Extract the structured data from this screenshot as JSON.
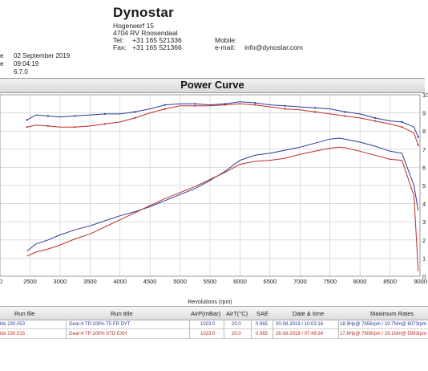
{
  "header": {
    "company": "Dynostar",
    "address_line1": "Hogerwerf 15",
    "address_line2": "4704 RV Roosendaal",
    "tel_label": "Tel:",
    "tel": "+31 165 521336",
    "fax_label": "Fax:",
    "fax": "+31 165 521366",
    "mobile_label": "Mobile:",
    "email_label": "e-mail:",
    "email": "info@dynostar.com"
  },
  "meta": {
    "rows": [
      {
        "label": "e",
        "value": "02 September 2019"
      },
      {
        "label": "e",
        "value": "09:04:19"
      },
      {
        "label": "",
        "value": "6.7.0"
      }
    ]
  },
  "chart_data": {
    "type": "line",
    "title": "Power Curve",
    "xlabel": "Revolutions (rpm)",
    "xlim": [
      2000,
      9000
    ],
    "x_ticks": [
      2500,
      3000,
      3500,
      4000,
      4500,
      5000,
      5500,
      6000,
      6500,
      7000,
      7500,
      8000,
      8500,
      9000
    ],
    "left_x_tick_partial": "2000",
    "right_axis_ticks": [
      "10",
      "9",
      "8",
      "7",
      "6",
      "5",
      "4",
      "3",
      "2",
      "1",
      "0"
    ],
    "grid": true,
    "series": [
      {
        "group": "power",
        "color": "#2b3a9c",
        "x": [
          2450,
          2600,
          2800,
          3000,
          3250,
          3500,
          3750,
          4000,
          4250,
          4500,
          4750,
          5000,
          5250,
          5500,
          5750,
          6000,
          6250,
          6500,
          6750,
          7000,
          7250,
          7500,
          7650,
          7750,
          8000,
          8250,
          8500,
          8700,
          8900,
          8970
        ],
        "y": [
          2.5,
          3.2,
          3.6,
          4.1,
          4.6,
          5.0,
          5.5,
          6.0,
          6.4,
          6.9,
          7.5,
          8.1,
          8.7,
          9.5,
          10.4,
          11.5,
          12.0,
          12.2,
          12.5,
          12.8,
          13.2,
          13.6,
          13.7,
          13.6,
          13.3,
          12.9,
          12.4,
          12.2,
          9.0,
          6.5
        ]
      },
      {
        "group": "power",
        "color": "#c12a2a",
        "x": [
          2450,
          2600,
          2800,
          3000,
          3250,
          3500,
          3750,
          4000,
          4250,
          4500,
          4750,
          5000,
          5250,
          5500,
          5750,
          6000,
          6250,
          6500,
          6750,
          7000,
          7250,
          7500,
          7650,
          7750,
          8000,
          8250,
          8500,
          8700,
          8900,
          8970
        ],
        "y": [
          2.0,
          2.4,
          2.7,
          3.1,
          3.7,
          4.2,
          4.9,
          5.6,
          6.3,
          7.0,
          7.7,
          8.3,
          8.9,
          9.6,
          10.3,
          11.1,
          11.4,
          11.5,
          11.7,
          12.1,
          12.4,
          12.7,
          12.8,
          12.75,
          12.4,
          12.0,
          11.6,
          11.5,
          8.0,
          0.5
        ]
      },
      {
        "group": "torque",
        "color": "#2b3a9c",
        "x": [
          2450,
          2600,
          2800,
          3000,
          3250,
          3500,
          3750,
          4000,
          4250,
          4500,
          4750,
          5000,
          5250,
          5500,
          5750,
          6000,
          6250,
          6500,
          6750,
          7000,
          7250,
          7500,
          7750,
          8000,
          8250,
          8500,
          8700,
          8900,
          8970
        ],
        "y": [
          15.5,
          16.0,
          15.9,
          15.8,
          15.9,
          16.0,
          16.1,
          16.1,
          16.3,
          16.6,
          17.0,
          17.1,
          17.1,
          17.0,
          17.1,
          17.3,
          17.2,
          17.0,
          16.9,
          16.8,
          16.7,
          16.6,
          16.3,
          16.1,
          15.7,
          15.4,
          15.3,
          14.8,
          13.8
        ]
      },
      {
        "group": "torque",
        "color": "#c12a2a",
        "x": [
          2450,
          2600,
          2800,
          3000,
          3250,
          3500,
          3750,
          4000,
          4250,
          4500,
          4750,
          5000,
          5250,
          5500,
          5750,
          6000,
          6250,
          6500,
          6750,
          7000,
          7250,
          7500,
          7750,
          8000,
          8250,
          8500,
          8700,
          8900,
          8970
        ],
        "y": [
          14.8,
          15.0,
          14.9,
          14.8,
          14.8,
          14.9,
          15.1,
          15.3,
          15.7,
          16.2,
          16.6,
          16.9,
          16.9,
          16.9,
          17.0,
          17.1,
          17.0,
          16.8,
          16.6,
          16.5,
          16.3,
          16.1,
          15.9,
          15.7,
          15.4,
          15.1,
          14.8,
          14.2,
          13.0
        ]
      }
    ]
  },
  "table": {
    "headers": [
      "Run file",
      "Run title",
      "AirP(mBar)",
      "AirT(°C)",
      "SAE",
      "Date & time",
      "Maximum Rates"
    ],
    "rows": [
      {
        "run_file": "ldx 230.053",
        "run_title": "Gear:4 TP:100% T5 FR DYT",
        "airp": "1023.0",
        "airt": "20.0",
        "sae": "0.965",
        "datetime": "30-08-2019 / 10:03:16",
        "max_rates": "18.9Hp@ 7656rpm / 19.7Nm@ 6073rpm"
      },
      {
        "run_file": "ldx 230.015",
        "run_title": "Gear:4 TP:100%  STD EXH",
        "airp": "1023.0",
        "airt": "20.0",
        "sae": "0.965",
        "datetime": "26-08-2019 / 07:49:34",
        "max_rates": "17.6Hp@ 7608rpm / 19.1Nm@ 5993rpm"
      }
    ]
  }
}
